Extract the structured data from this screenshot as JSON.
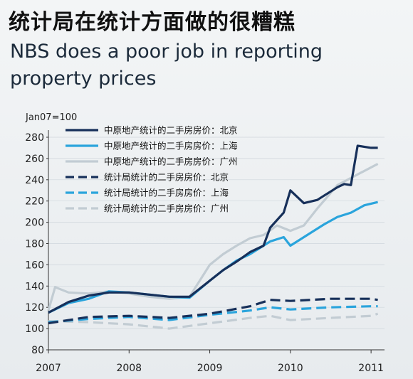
{
  "title_zh": "统计局在统计方面做的很糟糕",
  "title_en": "NBS does a poor job in reporting property prices",
  "unit_label": "Jan07=100",
  "colors": {
    "beijing": "#17305a",
    "shanghai": "#2aa4dc",
    "guangzhou": "#c2ccd3"
  },
  "chart_data": {
    "type": "line",
    "x_type": "date",
    "xlim": [
      "2007-01",
      "2011-03"
    ],
    "xticks": [
      "2007",
      "2008",
      "2009",
      "2010",
      "2011"
    ],
    "ylim": [
      80,
      280
    ],
    "yticks": [
      80,
      100,
      120,
      140,
      160,
      180,
      200,
      220,
      240,
      260,
      280
    ],
    "legend_position": "top-left",
    "series": [
      {
        "name": "中原地产统计的二手房房价：北京",
        "color": "#17305a",
        "style": "solid",
        "x": [
          "2007-01",
          "2007-04",
          "2007-07",
          "2007-10",
          "2008-01",
          "2008-04",
          "2008-07",
          "2008-10",
          "2009-01",
          "2009-03",
          "2009-05",
          "2009-07",
          "2009-09",
          "2009-10",
          "2009-12",
          "2010-01",
          "2010-03",
          "2010-05",
          "2010-06",
          "2010-08",
          "2010-09",
          "2010-10",
          "2010-11",
          "2011-01",
          "2011-02"
        ],
        "values": [
          115,
          125,
          131,
          134,
          134,
          132,
          130,
          130,
          145,
          155,
          163,
          172,
          178,
          195,
          209,
          230,
          218,
          221,
          225,
          233,
          236,
          235,
          272,
          270,
          270
        ]
      },
      {
        "name": "中原地产统计的二手房房价：上海",
        "color": "#2aa4dc",
        "style": "solid",
        "x": [
          "2007-01",
          "2007-04",
          "2007-07",
          "2007-10",
          "2008-01",
          "2008-04",
          "2008-07",
          "2008-10",
          "2009-01",
          "2009-03",
          "2009-05",
          "2009-07",
          "2009-09",
          "2009-10",
          "2009-12",
          "2010-01",
          "2010-02",
          "2010-04",
          "2010-06",
          "2010-08",
          "2010-10",
          "2010-12",
          "2011-02"
        ],
        "values": [
          115,
          124,
          128,
          135,
          134,
          132,
          130,
          129,
          145,
          155,
          164,
          170,
          178,
          182,
          186,
          178,
          182,
          190,
          198,
          205,
          209,
          216,
          219
        ]
      },
      {
        "name": "中原地产统计的二手房房价：广州",
        "color": "#c2ccd3",
        "style": "solid",
        "x": [
          "2007-01",
          "2007-02",
          "2007-04",
          "2007-07",
          "2007-10",
          "2008-01",
          "2008-04",
          "2008-07",
          "2008-10",
          "2009-01",
          "2009-03",
          "2009-05",
          "2009-07",
          "2009-09",
          "2009-11",
          "2010-01",
          "2010-03",
          "2010-05",
          "2010-08",
          "2010-11",
          "2011-02"
        ],
        "values": [
          117,
          139,
          134,
          133,
          135,
          133,
          130,
          128,
          130,
          160,
          170,
          178,
          185,
          188,
          197,
          192,
          197,
          213,
          235,
          245,
          255
        ]
      },
      {
        "name": "统计局统计的二手房房价：北京",
        "color": "#17305a",
        "style": "dashed",
        "x": [
          "2007-01",
          "2007-07",
          "2008-01",
          "2008-07",
          "2009-01",
          "2009-07",
          "2009-10",
          "2010-01",
          "2010-07",
          "2011-01",
          "2011-02"
        ],
        "values": [
          105,
          111,
          112,
          110,
          114,
          121,
          127,
          126,
          128,
          128,
          127
        ]
      },
      {
        "name": "统计局统计的二手房房价：上海",
        "color": "#2aa4dc",
        "style": "dashed",
        "x": [
          "2007-01",
          "2007-07",
          "2008-01",
          "2008-07",
          "2009-01",
          "2009-07",
          "2009-10",
          "2010-01",
          "2010-07",
          "2011-01",
          "2011-02"
        ],
        "values": [
          106,
          109,
          111,
          108,
          113,
          117,
          120,
          118,
          120,
          121,
          121
        ]
      },
      {
        "name": "统计局统计的二手房房价：广州",
        "color": "#c2ccd3",
        "style": "dashed",
        "x": [
          "2007-01",
          "2007-07",
          "2008-01",
          "2008-07",
          "2009-01",
          "2009-07",
          "2009-10",
          "2010-01",
          "2010-07",
          "2011-01",
          "2011-02"
        ],
        "values": [
          107,
          106,
          104,
          100,
          105,
          110,
          112,
          108,
          110,
          112,
          114
        ]
      }
    ]
  }
}
